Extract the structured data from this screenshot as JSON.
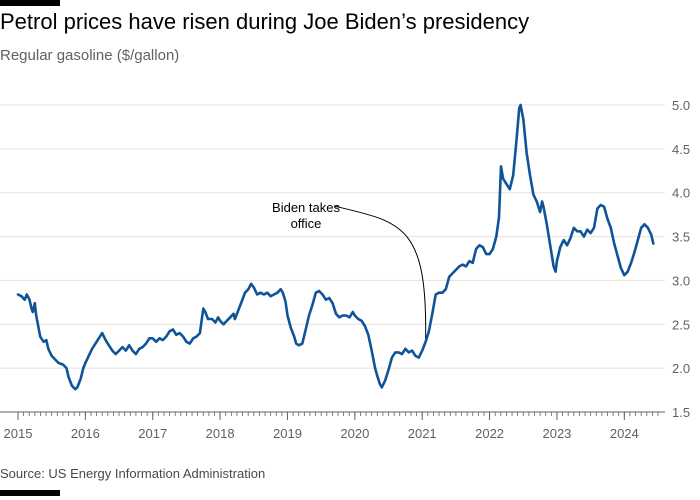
{
  "title": "Petrol prices have risen during Joe Biden’s presidency",
  "subtitle": "Regular gasoline ($/gallon)",
  "source": "Source: US Energy Information Administration",
  "colors": {
    "line": "#0f5499",
    "grid": "#e6e0dc",
    "axis": "#66605c",
    "topbar": "#000000"
  },
  "chart_data": {
    "type": "line",
    "title": "Petrol prices have risen during Joe Biden’s presidency",
    "ylabel": "Regular gasoline ($/gallon)",
    "xlabel": "",
    "ylim": [
      1.5,
      5.0
    ],
    "xlim": [
      2015.0,
      2024.5
    ],
    "yticks": [
      1.5,
      2.0,
      2.5,
      3.0,
      3.5,
      4.0,
      4.5,
      5.0
    ],
    "ytick_labels": [
      "1.5",
      "2.0",
      "2.5",
      "3.0",
      "3.5",
      "4.0",
      "4.5",
      "5.0"
    ],
    "xticks": [
      2015,
      2016,
      2017,
      2018,
      2019,
      2020,
      2021,
      2022,
      2023,
      2024
    ],
    "xtick_labels": [
      "2015",
      "2016",
      "2017",
      "2018",
      "2019",
      "2020",
      "2021",
      "2022",
      "2023",
      "2024"
    ],
    "y_axis_side": "right",
    "grid": true,
    "annotations": [
      {
        "text_lines": [
          "Biden takes",
          "office"
        ],
        "x": 2021.05
      }
    ],
    "series": [
      {
        "values": [
          [
            2015.0,
            2.84
          ],
          [
            2015.05,
            2.82
          ],
          [
            2015.1,
            2.78
          ],
          [
            2015.13,
            2.84
          ],
          [
            2015.17,
            2.78
          ],
          [
            2015.2,
            2.68
          ],
          [
            2015.22,
            2.64
          ],
          [
            2015.25,
            2.74
          ],
          [
            2015.27,
            2.6
          ],
          [
            2015.3,
            2.48
          ],
          [
            2015.33,
            2.36
          ],
          [
            2015.38,
            2.3
          ],
          [
            2015.42,
            2.32
          ],
          [
            2015.45,
            2.22
          ],
          [
            2015.5,
            2.14
          ],
          [
            2015.55,
            2.1
          ],
          [
            2015.6,
            2.06
          ],
          [
            2015.67,
            2.04
          ],
          [
            2015.72,
            2.0
          ],
          [
            2015.75,
            1.9
          ],
          [
            2015.8,
            1.8
          ],
          [
            2015.85,
            1.76
          ],
          [
            2015.88,
            1.78
          ],
          [
            2015.93,
            1.88
          ],
          [
            2015.97,
            2.0
          ],
          [
            2016.0,
            2.06
          ],
          [
            2016.05,
            2.14
          ],
          [
            2016.1,
            2.22
          ],
          [
            2016.15,
            2.28
          ],
          [
            2016.2,
            2.34
          ],
          [
            2016.25,
            2.4
          ],
          [
            2016.3,
            2.32
          ],
          [
            2016.35,
            2.26
          ],
          [
            2016.4,
            2.2
          ],
          [
            2016.45,
            2.16
          ],
          [
            2016.5,
            2.2
          ],
          [
            2016.55,
            2.24
          ],
          [
            2016.6,
            2.2
          ],
          [
            2016.65,
            2.26
          ],
          [
            2016.7,
            2.2
          ],
          [
            2016.75,
            2.16
          ],
          [
            2016.8,
            2.22
          ],
          [
            2016.85,
            2.24
          ],
          [
            2016.9,
            2.28
          ],
          [
            2016.95,
            2.34
          ],
          [
            2017.0,
            2.34
          ],
          [
            2017.05,
            2.3
          ],
          [
            2017.1,
            2.34
          ],
          [
            2017.15,
            2.32
          ],
          [
            2017.2,
            2.36
          ],
          [
            2017.25,
            2.42
          ],
          [
            2017.3,
            2.44
          ],
          [
            2017.35,
            2.38
          ],
          [
            2017.4,
            2.4
          ],
          [
            2017.45,
            2.36
          ],
          [
            2017.5,
            2.3
          ],
          [
            2017.55,
            2.28
          ],
          [
            2017.6,
            2.34
          ],
          [
            2017.65,
            2.36
          ],
          [
            2017.7,
            2.4
          ],
          [
            2017.75,
            2.68
          ],
          [
            2017.78,
            2.64
          ],
          [
            2017.82,
            2.56
          ],
          [
            2017.88,
            2.56
          ],
          [
            2017.93,
            2.52
          ],
          [
            2017.97,
            2.58
          ],
          [
            2018.0,
            2.54
          ],
          [
            2018.05,
            2.5
          ],
          [
            2018.1,
            2.54
          ],
          [
            2018.15,
            2.58
          ],
          [
            2018.2,
            2.62
          ],
          [
            2018.22,
            2.56
          ],
          [
            2018.27,
            2.66
          ],
          [
            2018.32,
            2.76
          ],
          [
            2018.37,
            2.86
          ],
          [
            2018.42,
            2.9
          ],
          [
            2018.46,
            2.96
          ],
          [
            2018.5,
            2.92
          ],
          [
            2018.55,
            2.84
          ],
          [
            2018.6,
            2.86
          ],
          [
            2018.65,
            2.84
          ],
          [
            2018.7,
            2.86
          ],
          [
            2018.75,
            2.82
          ],
          [
            2018.8,
            2.84
          ],
          [
            2018.85,
            2.86
          ],
          [
            2018.9,
            2.9
          ],
          [
            2018.93,
            2.86
          ],
          [
            2018.97,
            2.76
          ],
          [
            2019.0,
            2.6
          ],
          [
            2019.05,
            2.46
          ],
          [
            2019.1,
            2.36
          ],
          [
            2019.13,
            2.28
          ],
          [
            2019.17,
            2.26
          ],
          [
            2019.22,
            2.28
          ],
          [
            2019.27,
            2.44
          ],
          [
            2019.32,
            2.6
          ],
          [
            2019.37,
            2.72
          ],
          [
            2019.42,
            2.86
          ],
          [
            2019.47,
            2.88
          ],
          [
            2019.52,
            2.84
          ],
          [
            2019.57,
            2.78
          ],
          [
            2019.62,
            2.8
          ],
          [
            2019.67,
            2.74
          ],
          [
            2019.72,
            2.62
          ],
          [
            2019.77,
            2.58
          ],
          [
            2019.82,
            2.6
          ],
          [
            2019.87,
            2.6
          ],
          [
            2019.92,
            2.58
          ],
          [
            2019.97,
            2.64
          ],
          [
            2020.0,
            2.6
          ],
          [
            2020.05,
            2.56
          ],
          [
            2020.1,
            2.54
          ],
          [
            2020.15,
            2.48
          ],
          [
            2020.2,
            2.38
          ],
          [
            2020.25,
            2.2
          ],
          [
            2020.3,
            2.0
          ],
          [
            2020.33,
            1.92
          ],
          [
            2020.37,
            1.82
          ],
          [
            2020.4,
            1.78
          ],
          [
            2020.45,
            1.86
          ],
          [
            2020.5,
            1.98
          ],
          [
            2020.55,
            2.12
          ],
          [
            2020.6,
            2.18
          ],
          [
            2020.65,
            2.18
          ],
          [
            2020.7,
            2.16
          ],
          [
            2020.75,
            2.22
          ],
          [
            2020.8,
            2.18
          ],
          [
            2020.85,
            2.2
          ],
          [
            2020.9,
            2.14
          ],
          [
            2020.95,
            2.12
          ],
          [
            2021.0,
            2.2
          ],
          [
            2021.05,
            2.3
          ],
          [
            2021.1,
            2.42
          ],
          [
            2021.15,
            2.62
          ],
          [
            2021.2,
            2.84
          ],
          [
            2021.25,
            2.86
          ],
          [
            2021.3,
            2.86
          ],
          [
            2021.35,
            2.9
          ],
          [
            2021.4,
            3.04
          ],
          [
            2021.45,
            3.08
          ],
          [
            2021.5,
            3.12
          ],
          [
            2021.55,
            3.16
          ],
          [
            2021.6,
            3.18
          ],
          [
            2021.65,
            3.16
          ],
          [
            2021.7,
            3.22
          ],
          [
            2021.75,
            3.2
          ],
          [
            2021.8,
            3.36
          ],
          [
            2021.85,
            3.4
          ],
          [
            2021.9,
            3.38
          ],
          [
            2021.95,
            3.3
          ],
          [
            2022.0,
            3.3
          ],
          [
            2022.05,
            3.36
          ],
          [
            2022.1,
            3.5
          ],
          [
            2022.14,
            3.72
          ],
          [
            2022.17,
            4.3
          ],
          [
            2022.2,
            4.16
          ],
          [
            2022.25,
            4.1
          ],
          [
            2022.3,
            4.04
          ],
          [
            2022.35,
            4.2
          ],
          [
            2022.4,
            4.6
          ],
          [
            2022.44,
            4.96
          ],
          [
            2022.46,
            5.0
          ],
          [
            2022.5,
            4.84
          ],
          [
            2022.55,
            4.46
          ],
          [
            2022.6,
            4.2
          ],
          [
            2022.65,
            3.98
          ],
          [
            2022.7,
            3.9
          ],
          [
            2022.75,
            3.78
          ],
          [
            2022.78,
            3.9
          ],
          [
            2022.8,
            3.84
          ],
          [
            2022.85,
            3.64
          ],
          [
            2022.9,
            3.4
          ],
          [
            2022.95,
            3.16
          ],
          [
            2022.98,
            3.1
          ],
          [
            2023.0,
            3.22
          ],
          [
            2023.05,
            3.38
          ],
          [
            2023.1,
            3.46
          ],
          [
            2023.15,
            3.4
          ],
          [
            2023.2,
            3.48
          ],
          [
            2023.25,
            3.6
          ],
          [
            2023.3,
            3.56
          ],
          [
            2023.35,
            3.56
          ],
          [
            2023.4,
            3.5
          ],
          [
            2023.45,
            3.58
          ],
          [
            2023.5,
            3.54
          ],
          [
            2023.55,
            3.6
          ],
          [
            2023.6,
            3.82
          ],
          [
            2023.65,
            3.86
          ],
          [
            2023.7,
            3.84
          ],
          [
            2023.75,
            3.7
          ],
          [
            2023.8,
            3.6
          ],
          [
            2023.85,
            3.42
          ],
          [
            2023.9,
            3.28
          ],
          [
            2023.95,
            3.14
          ],
          [
            2024.0,
            3.06
          ],
          [
            2024.05,
            3.1
          ],
          [
            2024.1,
            3.2
          ],
          [
            2024.15,
            3.32
          ],
          [
            2024.2,
            3.46
          ],
          [
            2024.25,
            3.6
          ],
          [
            2024.3,
            3.64
          ],
          [
            2024.35,
            3.6
          ],
          [
            2024.4,
            3.52
          ],
          [
            2024.43,
            3.42
          ]
        ]
      }
    ]
  }
}
